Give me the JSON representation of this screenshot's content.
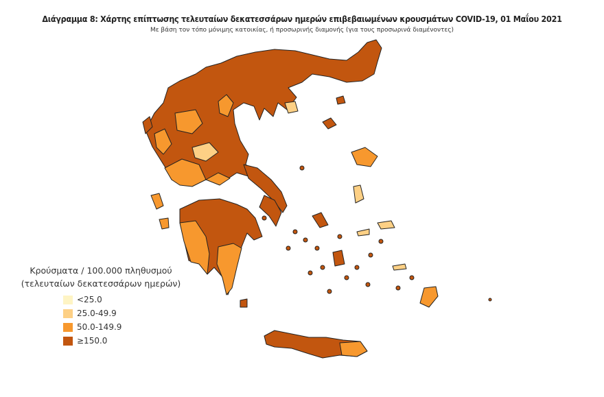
{
  "title": "Διάγραμμα 8: Χάρτης επίπτωσης τελευταίων δεκατεσσάρων ημερών επιβεβαιωμένων κρουσμάτων COVID-19, 01 Μαΐου 2021",
  "subtitle": "Με βάση τον τόπο μόνιμης κατοικίας, ή προσωρινής διαμονής (για τους προσωρινά διαμένοντες)",
  "legend": {
    "title_line1": "Κρούσματα / 100.000 πληθυσμού",
    "title_line2": "(τελευταίων δεκατεσσάρων ημερών)",
    "items": [
      {
        "label": "<25.0",
        "color": "#fef4c4"
      },
      {
        "label": "25.0-49.9",
        "color": "#fdd085"
      },
      {
        "label": "50.0-149.9",
        "color": "#f7982e"
      },
      {
        "label": "≥150.0",
        "color": "#c2560f"
      }
    ]
  },
  "border_color": "#222222"
}
